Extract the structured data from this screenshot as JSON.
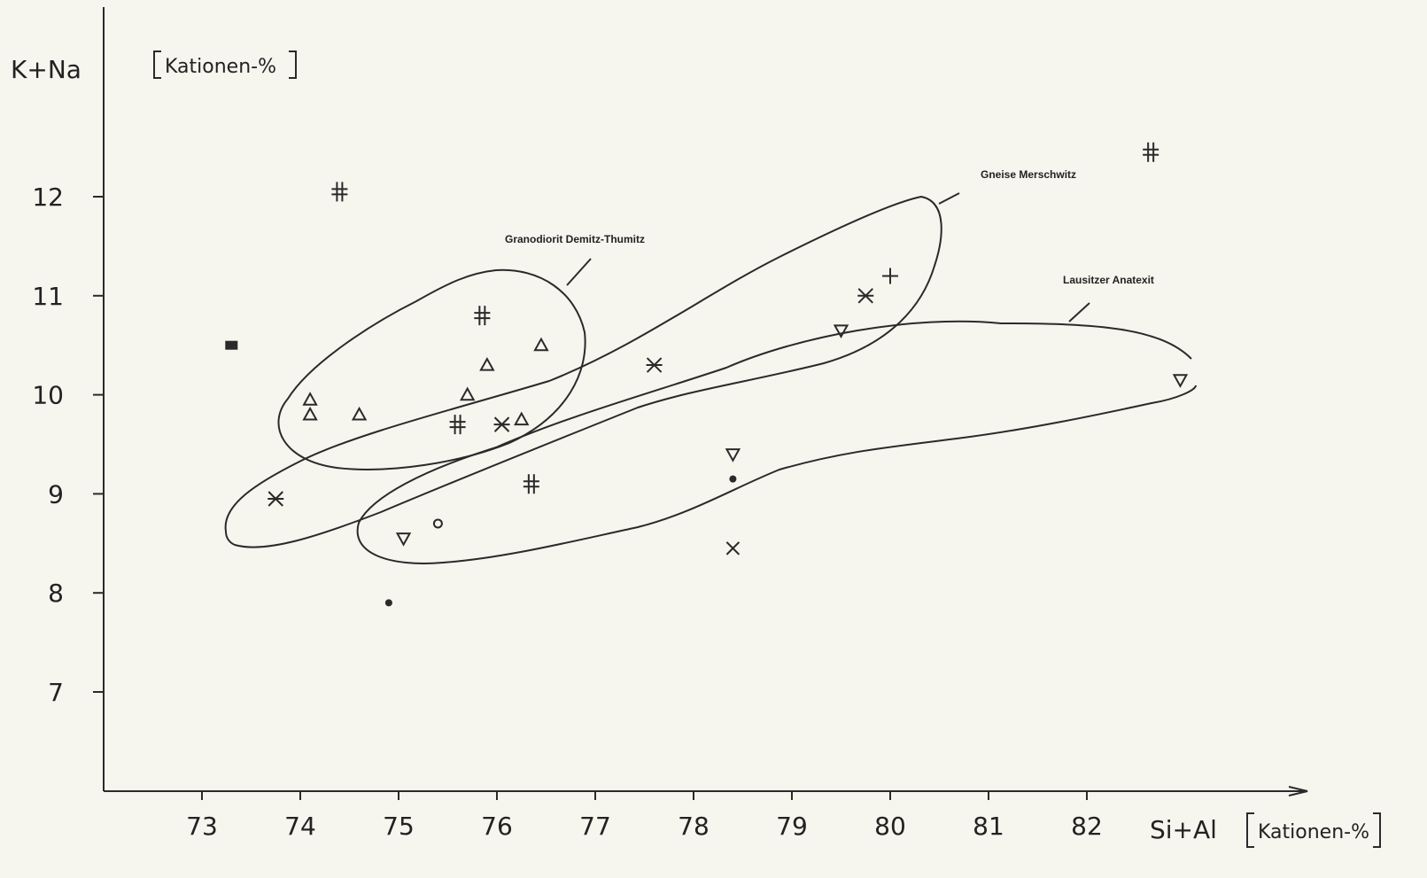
{
  "chart_data": {
    "type": "scatter",
    "xlabel": "Si+Al",
    "xunit": "Kationen-%",
    "ylabel": "K+Na",
    "yunit": "Kationen-%",
    "xlim": [
      72,
      83.5
    ],
    "ylim": [
      6,
      13.5
    ],
    "xticks": [
      "73",
      "74",
      "75",
      "76",
      "77",
      "78",
      "79",
      "80",
      "81",
      "82"
    ],
    "yticks": [
      "7",
      "8",
      "9",
      "10",
      "11",
      "12"
    ],
    "regions": [
      {
        "name": "Granodiorit Demitz-Thumitz"
      },
      {
        "name": "Gneise Merschwitz"
      },
      {
        "name": "Lausitzer Anatexit"
      }
    ],
    "points": [
      {
        "marker": "triangle-up",
        "x": 74.1,
        "y": 9.95
      },
      {
        "marker": "triangle-up",
        "x": 74.1,
        "y": 9.8
      },
      {
        "marker": "triangle-up",
        "x": 74.6,
        "y": 9.8
      },
      {
        "marker": "triangle-up",
        "x": 75.7,
        "y": 10.0
      },
      {
        "marker": "triangle-up",
        "x": 75.9,
        "y": 10.3
      },
      {
        "marker": "triangle-up",
        "x": 76.25,
        "y": 9.75
      },
      {
        "marker": "triangle-up",
        "x": 76.45,
        "y": 10.5
      },
      {
        "marker": "double-hash",
        "x": 74.4,
        "y": 12.05
      },
      {
        "marker": "double-hash",
        "x": 75.85,
        "y": 10.8
      },
      {
        "marker": "double-hash",
        "x": 75.6,
        "y": 9.7
      },
      {
        "marker": "double-hash",
        "x": 76.35,
        "y": 9.1
      },
      {
        "marker": "double-hash",
        "x": 82.65,
        "y": 12.45
      },
      {
        "marker": "star",
        "x": 73.75,
        "y": 8.95
      },
      {
        "marker": "star",
        "x": 76.05,
        "y": 9.7
      },
      {
        "marker": "star",
        "x": 77.6,
        "y": 10.3
      },
      {
        "marker": "star",
        "x": 79.75,
        "y": 11.0
      },
      {
        "marker": "triangle-down",
        "x": 75.05,
        "y": 8.55
      },
      {
        "marker": "triangle-down",
        "x": 78.4,
        "y": 9.4
      },
      {
        "marker": "triangle-down",
        "x": 79.5,
        "y": 10.65
      },
      {
        "marker": "triangle-down",
        "x": 82.95,
        "y": 10.15
      },
      {
        "marker": "plus",
        "x": 80.0,
        "y": 11.2
      },
      {
        "marker": "cross",
        "x": 78.4,
        "y": 8.45
      },
      {
        "marker": "circle-open",
        "x": 75.4,
        "y": 8.7
      },
      {
        "marker": "dot",
        "x": 78.4,
        "y": 9.15
      },
      {
        "marker": "dot",
        "x": 74.9,
        "y": 7.9
      },
      {
        "marker": "square-filled",
        "x": 73.3,
        "y": 10.5
      }
    ]
  }
}
